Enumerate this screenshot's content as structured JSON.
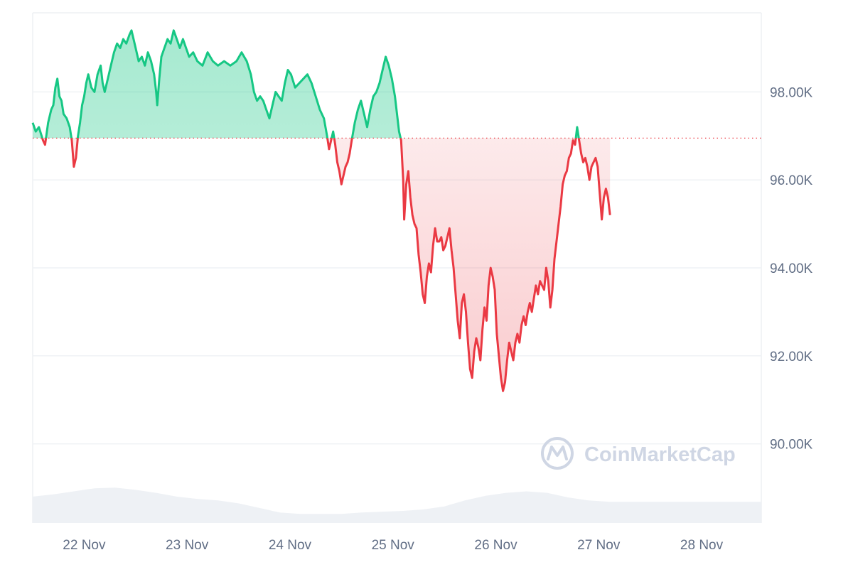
{
  "chart_data": {
    "type": "line",
    "baseline": 96.95,
    "ylim": [
      88.2,
      99.8
    ],
    "xlim": [
      0,
      7.08
    ],
    "y_ticks": [
      {
        "value": 90,
        "label": "90.00K"
      },
      {
        "value": 92,
        "label": "92.00K"
      },
      {
        "value": 94,
        "label": "94.00K"
      },
      {
        "value": 96,
        "label": "96.00K"
      },
      {
        "value": 98,
        "label": "98.00K"
      }
    ],
    "x_ticks": [
      {
        "value": 0.5,
        "label": "22 Nov"
      },
      {
        "value": 1.5,
        "label": "23 Nov"
      },
      {
        "value": 2.5,
        "label": "24 Nov"
      },
      {
        "value": 3.5,
        "label": "25 Nov"
      },
      {
        "value": 4.5,
        "label": "26 Nov"
      },
      {
        "value": 5.5,
        "label": "27 Nov"
      },
      {
        "value": 6.5,
        "label": "28 Nov"
      }
    ],
    "price": [
      [
        0.0,
        97.3
      ],
      [
        0.03,
        97.1
      ],
      [
        0.06,
        97.2
      ],
      [
        0.1,
        96.9
      ],
      [
        0.12,
        96.8
      ],
      [
        0.15,
        97.3
      ],
      [
        0.18,
        97.6
      ],
      [
        0.2,
        97.7
      ],
      [
        0.22,
        98.1
      ],
      [
        0.24,
        98.3
      ],
      [
        0.26,
        97.9
      ],
      [
        0.28,
        97.8
      ],
      [
        0.3,
        97.5
      ],
      [
        0.33,
        97.4
      ],
      [
        0.36,
        97.2
      ],
      [
        0.38,
        96.9
      ],
      [
        0.4,
        96.3
      ],
      [
        0.42,
        96.5
      ],
      [
        0.44,
        97.0
      ],
      [
        0.46,
        97.3
      ],
      [
        0.48,
        97.7
      ],
      [
        0.5,
        97.9
      ],
      [
        0.52,
        98.2
      ],
      [
        0.54,
        98.4
      ],
      [
        0.57,
        98.1
      ],
      [
        0.6,
        98.0
      ],
      [
        0.63,
        98.4
      ],
      [
        0.66,
        98.6
      ],
      [
        0.68,
        98.2
      ],
      [
        0.7,
        98.0
      ],
      [
        0.73,
        98.3
      ],
      [
        0.76,
        98.6
      ],
      [
        0.79,
        98.9
      ],
      [
        0.82,
        99.1
      ],
      [
        0.85,
        99.0
      ],
      [
        0.88,
        99.2
      ],
      [
        0.91,
        99.1
      ],
      [
        0.94,
        99.3
      ],
      [
        0.96,
        99.4
      ],
      [
        0.98,
        99.2
      ],
      [
        1.0,
        99.0
      ],
      [
        1.03,
        98.7
      ],
      [
        1.06,
        98.8
      ],
      [
        1.09,
        98.6
      ],
      [
        1.12,
        98.9
      ],
      [
        1.15,
        98.7
      ],
      [
        1.18,
        98.4
      ],
      [
        1.2,
        98.0
      ],
      [
        1.21,
        97.7
      ],
      [
        1.23,
        98.3
      ],
      [
        1.25,
        98.8
      ],
      [
        1.28,
        99.0
      ],
      [
        1.31,
        99.2
      ],
      [
        1.34,
        99.1
      ],
      [
        1.37,
        99.4
      ],
      [
        1.4,
        99.2
      ],
      [
        1.43,
        99.0
      ],
      [
        1.46,
        99.2
      ],
      [
        1.49,
        99.0
      ],
      [
        1.52,
        98.8
      ],
      [
        1.56,
        98.9
      ],
      [
        1.6,
        98.7
      ],
      [
        1.65,
        98.6
      ],
      [
        1.7,
        98.9
      ],
      [
        1.75,
        98.7
      ],
      [
        1.8,
        98.6
      ],
      [
        1.86,
        98.7
      ],
      [
        1.92,
        98.6
      ],
      [
        1.98,
        98.7
      ],
      [
        2.03,
        98.9
      ],
      [
        2.08,
        98.7
      ],
      [
        2.12,
        98.4
      ],
      [
        2.15,
        98.0
      ],
      [
        2.18,
        97.8
      ],
      [
        2.21,
        97.9
      ],
      [
        2.24,
        97.8
      ],
      [
        2.27,
        97.6
      ],
      [
        2.3,
        97.4
      ],
      [
        2.33,
        97.7
      ],
      [
        2.36,
        98.0
      ],
      [
        2.39,
        97.9
      ],
      [
        2.42,
        97.8
      ],
      [
        2.45,
        98.2
      ],
      [
        2.48,
        98.5
      ],
      [
        2.51,
        98.4
      ],
      [
        2.55,
        98.1
      ],
      [
        2.59,
        98.2
      ],
      [
        2.63,
        98.3
      ],
      [
        2.67,
        98.4
      ],
      [
        2.71,
        98.2
      ],
      [
        2.75,
        97.9
      ],
      [
        2.79,
        97.6
      ],
      [
        2.83,
        97.4
      ],
      [
        2.86,
        97.0
      ],
      [
        2.88,
        96.7
      ],
      [
        2.9,
        96.9
      ],
      [
        2.92,
        97.1
      ],
      [
        2.94,
        96.8
      ],
      [
        2.96,
        96.4
      ],
      [
        2.98,
        96.2
      ],
      [
        3.0,
        95.9
      ],
      [
        3.02,
        96.1
      ],
      [
        3.04,
        96.3
      ],
      [
        3.06,
        96.4
      ],
      [
        3.08,
        96.6
      ],
      [
        3.1,
        96.9
      ],
      [
        3.13,
        97.3
      ],
      [
        3.16,
        97.6
      ],
      [
        3.19,
        97.8
      ],
      [
        3.22,
        97.5
      ],
      [
        3.25,
        97.2
      ],
      [
        3.28,
        97.6
      ],
      [
        3.31,
        97.9
      ],
      [
        3.34,
        98.0
      ],
      [
        3.37,
        98.2
      ],
      [
        3.4,
        98.5
      ],
      [
        3.43,
        98.8
      ],
      [
        3.46,
        98.6
      ],
      [
        3.49,
        98.3
      ],
      [
        3.52,
        97.9
      ],
      [
        3.54,
        97.5
      ],
      [
        3.56,
        97.1
      ],
      [
        3.58,
        96.9
      ],
      [
        3.6,
        96.0
      ],
      [
        3.61,
        95.1
      ],
      [
        3.63,
        95.9
      ],
      [
        3.65,
        96.2
      ],
      [
        3.67,
        95.6
      ],
      [
        3.69,
        95.2
      ],
      [
        3.71,
        95.0
      ],
      [
        3.73,
        94.9
      ],
      [
        3.75,
        94.3
      ],
      [
        3.77,
        93.9
      ],
      [
        3.79,
        93.4
      ],
      [
        3.81,
        93.2
      ],
      [
        3.83,
        93.8
      ],
      [
        3.85,
        94.1
      ],
      [
        3.87,
        93.9
      ],
      [
        3.89,
        94.5
      ],
      [
        3.91,
        94.9
      ],
      [
        3.93,
        94.6
      ],
      [
        3.95,
        94.6
      ],
      [
        3.97,
        94.7
      ],
      [
        3.99,
        94.4
      ],
      [
        4.01,
        94.5
      ],
      [
        4.03,
        94.7
      ],
      [
        4.05,
        94.9
      ],
      [
        4.07,
        94.4
      ],
      [
        4.09,
        94.0
      ],
      [
        4.11,
        93.4
      ],
      [
        4.13,
        92.8
      ],
      [
        4.15,
        92.4
      ],
      [
        4.17,
        93.2
      ],
      [
        4.19,
        93.4
      ],
      [
        4.21,
        93.0
      ],
      [
        4.23,
        92.3
      ],
      [
        4.25,
        91.7
      ],
      [
        4.27,
        91.5
      ],
      [
        4.29,
        92.1
      ],
      [
        4.31,
        92.4
      ],
      [
        4.33,
        92.2
      ],
      [
        4.35,
        91.9
      ],
      [
        4.37,
        92.6
      ],
      [
        4.39,
        93.1
      ],
      [
        4.41,
        92.8
      ],
      [
        4.43,
        93.6
      ],
      [
        4.45,
        94.0
      ],
      [
        4.47,
        93.8
      ],
      [
        4.49,
        93.5
      ],
      [
        4.51,
        92.5
      ],
      [
        4.53,
        92.0
      ],
      [
        4.55,
        91.5
      ],
      [
        4.57,
        91.2
      ],
      [
        4.59,
        91.4
      ],
      [
        4.61,
        91.9
      ],
      [
        4.63,
        92.3
      ],
      [
        4.65,
        92.1
      ],
      [
        4.67,
        91.9
      ],
      [
        4.69,
        92.3
      ],
      [
        4.71,
        92.5
      ],
      [
        4.73,
        92.3
      ],
      [
        4.75,
        92.7
      ],
      [
        4.77,
        92.9
      ],
      [
        4.79,
        92.7
      ],
      [
        4.81,
        93.0
      ],
      [
        4.83,
        93.2
      ],
      [
        4.85,
        93.0
      ],
      [
        4.87,
        93.3
      ],
      [
        4.89,
        93.6
      ],
      [
        4.91,
        93.4
      ],
      [
        4.93,
        93.7
      ],
      [
        4.95,
        93.6
      ],
      [
        4.97,
        93.5
      ],
      [
        4.99,
        94.0
      ],
      [
        5.01,
        93.7
      ],
      [
        5.03,
        93.1
      ],
      [
        5.05,
        93.5
      ],
      [
        5.07,
        94.2
      ],
      [
        5.09,
        94.6
      ],
      [
        5.11,
        95.0
      ],
      [
        5.13,
        95.4
      ],
      [
        5.15,
        95.9
      ],
      [
        5.17,
        96.1
      ],
      [
        5.19,
        96.2
      ],
      [
        5.21,
        96.5
      ],
      [
        5.23,
        96.6
      ],
      [
        5.25,
        96.9
      ],
      [
        5.27,
        96.8
      ],
      [
        5.29,
        97.2
      ],
      [
        5.31,
        96.9
      ],
      [
        5.33,
        96.6
      ],
      [
        5.35,
        96.4
      ],
      [
        5.37,
        96.5
      ],
      [
        5.39,
        96.3
      ],
      [
        5.41,
        96.0
      ],
      [
        5.43,
        96.3
      ],
      [
        5.45,
        96.4
      ],
      [
        5.47,
        96.5
      ],
      [
        5.49,
        96.3
      ],
      [
        5.51,
        95.7
      ],
      [
        5.53,
        95.1
      ],
      [
        5.55,
        95.6
      ],
      [
        5.57,
        95.8
      ],
      [
        5.59,
        95.6
      ],
      [
        5.61,
        95.2
      ]
    ],
    "volume": [
      [
        0.0,
        0.35
      ],
      [
        0.2,
        0.38
      ],
      [
        0.4,
        0.42
      ],
      [
        0.6,
        0.46
      ],
      [
        0.8,
        0.47
      ],
      [
        1.0,
        0.44
      ],
      [
        1.2,
        0.4
      ],
      [
        1.4,
        0.35
      ],
      [
        1.6,
        0.32
      ],
      [
        1.8,
        0.3
      ],
      [
        2.0,
        0.26
      ],
      [
        2.2,
        0.2
      ],
      [
        2.4,
        0.14
      ],
      [
        2.6,
        0.12
      ],
      [
        2.8,
        0.12
      ],
      [
        3.0,
        0.12
      ],
      [
        3.2,
        0.14
      ],
      [
        3.4,
        0.15
      ],
      [
        3.6,
        0.16
      ],
      [
        3.8,
        0.18
      ],
      [
        4.0,
        0.22
      ],
      [
        4.2,
        0.3
      ],
      [
        4.4,
        0.36
      ],
      [
        4.6,
        0.4
      ],
      [
        4.8,
        0.42
      ],
      [
        5.0,
        0.4
      ],
      [
        5.2,
        0.34
      ],
      [
        5.4,
        0.3
      ],
      [
        5.61,
        0.28
      ]
    ],
    "colors": {
      "up": "#16c784",
      "up_fill": "#16c784",
      "down": "#ea3943",
      "down_fill": "#ea3943",
      "baseline_dots": "#ea3943",
      "grid": "#eff2f5",
      "volume": "#eef1f5",
      "axis_text": "#616e85"
    }
  },
  "watermark": {
    "brand": "CoinMarketCap",
    "icon": "coinmarketcap-logo-icon"
  }
}
